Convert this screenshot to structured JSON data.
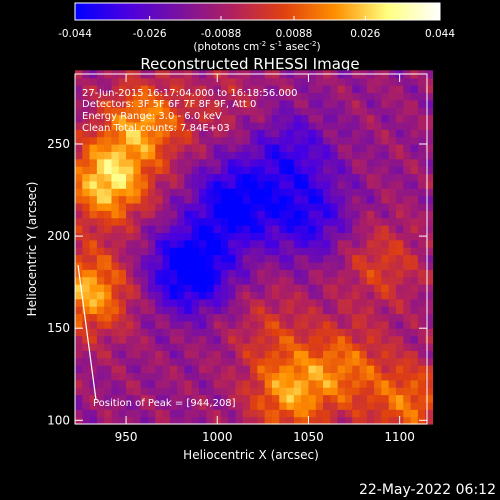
{
  "chart_data": {
    "type": "heatmap",
    "title": "Reconstructed RHESSI Image",
    "xlabel": "Heliocentric X (arcsec)",
    "ylabel": "Heliocentric Y (arcsec)",
    "xlim": [
      922,
      1115
    ],
    "ylim": [
      98,
      288
    ],
    "xticks": [
      950,
      1000,
      1050,
      1100
    ],
    "yticks": [
      100,
      150,
      200,
      250
    ],
    "grid": false,
    "colorbar": {
      "position": "top",
      "range": [
        -0.044,
        0.044
      ],
      "tick_labels": [
        "-0.044",
        "-0.026",
        "-0.0088",
        "0.0088",
        "0.026",
        "0.044"
      ],
      "units_label": "(photons cm",
      "units_sup1": "-2",
      "units_mid": " s",
      "units_sup2": "-1",
      "units_mid2": " asec",
      "units_sup3": "-2",
      "units_end": ")",
      "colors": [
        "#0000ff",
        "#4a00e0",
        "#7a10a0",
        "#b02060",
        "#e04010",
        "#ff9000",
        "#ffff80",
        "#ffffff"
      ]
    },
    "annotations": [
      "27-Jun-2015 16:17:04.000 to 16:18:56.000",
      "Detectors: 3F 5F 6F 7F 8F 9F, Att 0",
      "Energy Range: 3.0 - 6.0 keV",
      "Clean  Total counts: 7.84E+03"
    ],
    "peak_label": "Position of Peak = [944,208]",
    "peak": [
      944,
      208
    ],
    "sources": [
      {
        "x": 940,
        "y": 230,
        "value": 0.04
      },
      {
        "x": 960,
        "y": 262,
        "value": 0.03
      },
      {
        "x": 930,
        "y": 170,
        "value": 0.034
      },
      {
        "x": 1040,
        "y": 115,
        "value": 0.03
      },
      {
        "x": 1070,
        "y": 130,
        "value": 0.022
      },
      {
        "x": 1105,
        "y": 110,
        "value": 0.024
      },
      {
        "x": 1030,
        "y": 150,
        "value": 0.012
      },
      {
        "x": 1090,
        "y": 185,
        "value": 0.016
      },
      {
        "x": 1005,
        "y": 272,
        "value": 0.008
      },
      {
        "x": 985,
        "y": 182,
        "value": -0.04
      },
      {
        "x": 1010,
        "y": 218,
        "value": -0.034
      },
      {
        "x": 1050,
        "y": 210,
        "value": -0.024
      },
      {
        "x": 1040,
        "y": 245,
        "value": -0.02
      }
    ],
    "background_value": -0.012
  },
  "footer": {
    "date_text": "22-May-2022 06:12"
  }
}
